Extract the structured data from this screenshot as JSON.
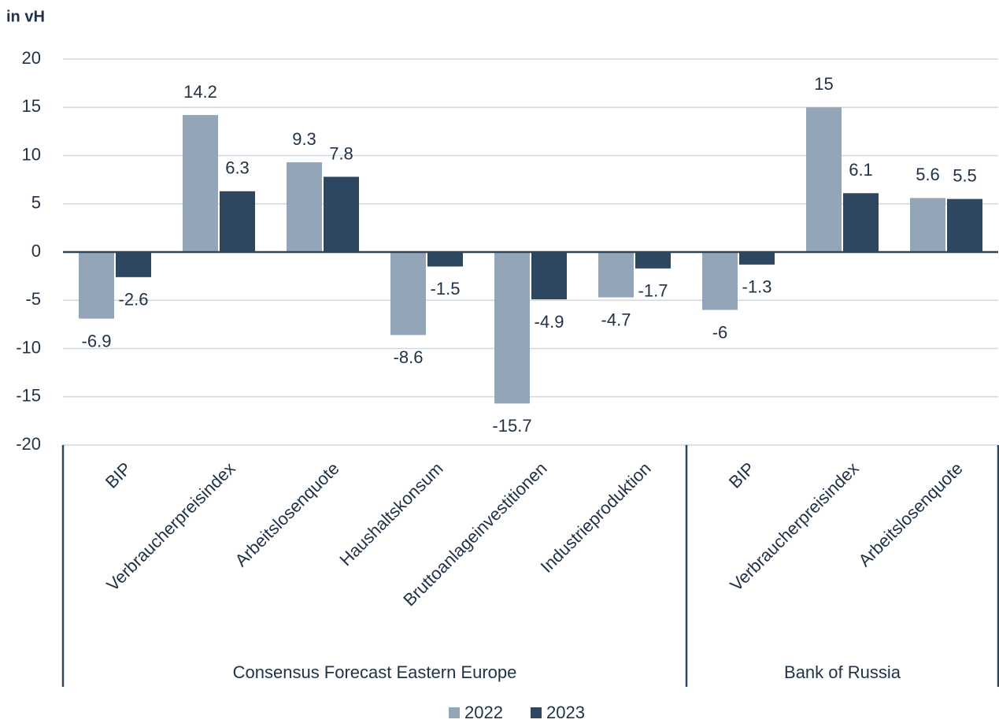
{
  "chart_data": {
    "type": "bar",
    "y_axis_label": "in vH",
    "groups": [
      {
        "name": "Consensus Forecast Eastern Europe",
        "categories": [
          "BIP",
          "Verbraucherpreisindex",
          "Arbeitslosenquote",
          "Haushaltskonsum",
          "Bruttoanlageinvestitionen",
          "Industrieproduktion"
        ]
      },
      {
        "name": "Bank of Russia",
        "categories": [
          "BIP",
          "Verbraucherpreisindex",
          "Arbeitslosenquote"
        ]
      }
    ],
    "series": [
      {
        "name": "2022",
        "color": "#94a5b8",
        "values": [
          -6.9,
          14.2,
          9.3,
          -8.6,
          -15.7,
          -4.7,
          -6,
          15,
          5.6
        ]
      },
      {
        "name": "2023",
        "color": "#2e4761",
        "values": [
          -2.6,
          6.3,
          7.8,
          -1.5,
          -4.9,
          -1.7,
          -1.3,
          6.1,
          5.5
        ]
      }
    ],
    "ylim": [
      -20,
      20
    ],
    "yticks": [
      -20,
      -15,
      -10,
      -5,
      0,
      5,
      10,
      15,
      20
    ],
    "grid": true,
    "legend": "bottom"
  }
}
